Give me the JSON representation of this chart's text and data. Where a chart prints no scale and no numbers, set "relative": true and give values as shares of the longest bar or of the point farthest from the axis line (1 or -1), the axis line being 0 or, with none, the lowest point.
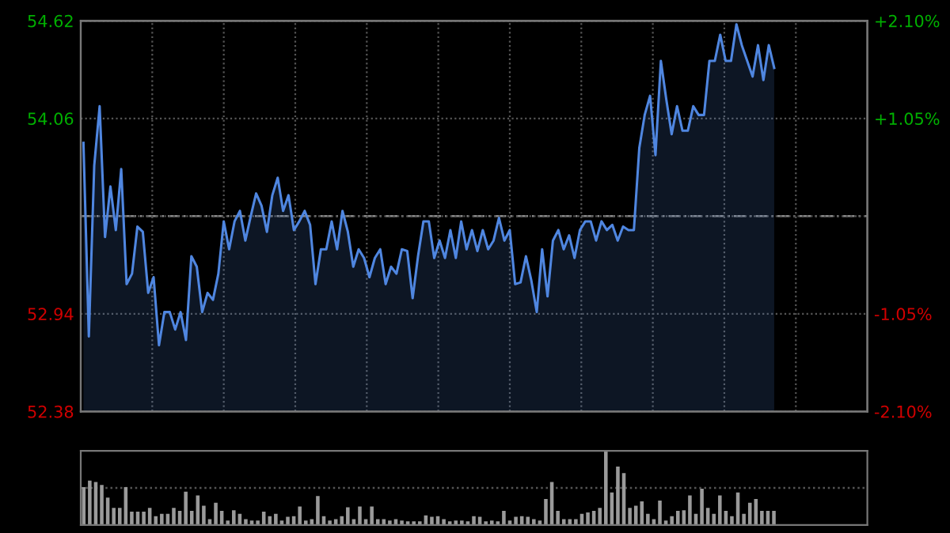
{
  "chart_data": [
    {
      "type": "area",
      "categories": [
        null,
        null,
        null,
        null,
        null,
        null,
        null,
        null,
        null,
        null,
        null,
        null,
        null,
        null,
        null,
        null,
        null,
        null,
        null,
        null,
        null,
        null,
        null,
        null,
        null,
        null,
        null,
        null,
        null,
        null,
        null,
        null,
        null,
        null,
        null,
        null,
        null,
        null,
        null,
        null,
        null,
        null,
        null,
        null,
        null,
        null,
        null,
        null,
        null,
        null,
        null,
        null,
        null,
        null,
        null,
        null,
        null,
        null,
        null,
        null,
        null,
        null,
        null,
        null,
        null,
        null,
        null,
        null,
        null,
        null,
        null,
        null,
        null,
        null,
        null,
        null,
        null,
        null,
        null,
        null,
        null,
        null,
        null,
        null,
        null,
        null,
        null,
        null,
        null,
        null,
        null,
        null,
        null,
        null,
        null,
        null,
        null,
        null,
        null,
        null,
        null,
        null,
        null,
        null,
        null,
        null,
        null,
        null,
        null,
        null,
        null,
        null,
        null,
        null,
        null,
        null,
        null,
        null,
        null,
        null,
        null,
        null,
        null,
        null,
        null,
        null,
        null,
        null,
        null
      ],
      "series": [
        {
          "color": "#4f86e0",
          "values": [
            53.92,
            52.81,
            53.79,
            54.13,
            53.38,
            53.67,
            53.42,
            53.77,
            53.11,
            53.17,
            53.44,
            53.41,
            53.06,
            53.15,
            52.76,
            52.95,
            52.95,
            52.85,
            52.95,
            52.79,
            53.27,
            53.21,
            52.95,
            53.06,
            53.02,
            53.17,
            53.47,
            53.31,
            53.47,
            53.53,
            53.36,
            53.5,
            53.63,
            53.56,
            53.41,
            53.62,
            53.72,
            53.53,
            53.62,
            53.42,
            53.47,
            53.53,
            53.45,
            53.11,
            53.31,
            53.31,
            53.47,
            53.31,
            53.53,
            53.41,
            53.21,
            53.31,
            53.26,
            53.15,
            53.26,
            53.31,
            53.11,
            53.21,
            53.17,
            53.31,
            53.3,
            53.03,
            53.27,
            53.47,
            53.47,
            53.26,
            53.36,
            53.26,
            53.42,
            53.26,
            53.47,
            53.31,
            53.42,
            53.3,
            53.42,
            53.31,
            53.36,
            53.49,
            53.36,
            53.42,
            53.11,
            53.12,
            53.27,
            53.13,
            52.95,
            53.31,
            53.04,
            53.36,
            53.42,
            53.31,
            53.39,
            53.26,
            53.42,
            53.47,
            53.47,
            53.36,
            53.47,
            53.42,
            53.45,
            53.36,
            53.44,
            53.42,
            53.42,
            53.89,
            54.08,
            54.19,
            53.85,
            54.39,
            54.17,
            53.97,
            54.13,
            53.99,
            53.99,
            54.13,
            54.08,
            54.08,
            54.39,
            54.39,
            54.54,
            54.39,
            54.39,
            54.6,
            54.48,
            54.39,
            54.3,
            54.48,
            54.28,
            54.48,
            54.35
          ]
        }
      ],
      "ylim": [
        52.38,
        54.62
      ],
      "yticks": [
        52.38,
        52.94,
        {
          "value": 53.5,
          "label": null
        },
        54.06,
        54.62
      ],
      "y2lim": [
        -2.1,
        2.1
      ],
      "y2ticks": [
        {
          "value": -2.1,
          "label": "-2.10%"
        },
        {
          "value": -1.05,
          "label": "-1.05%"
        },
        {
          "value": 0,
          "label": null
        },
        {
          "value": 1.05,
          "label": "+1.05%"
        },
        {
          "value": 2.1,
          "label": "+2.10%"
        }
      ],
      "ref_lines": [
        {
          "axis": "y",
          "value": 53.5,
          "color": "#8a8a8a",
          "line_style": "dashed"
        }
      ],
      "grid": true
    },
    {
      "type": "bar",
      "relative": true,
      "color": "#9a9a9a",
      "ref_lines": [
        {
          "axis": "y",
          "value": 0.5,
          "color": "#555555",
          "line_style": "dotted"
        }
      ],
      "categories": [
        null,
        null,
        null,
        null,
        null,
        null,
        null,
        null,
        null,
        null,
        null,
        null,
        null,
        null,
        null,
        null,
        null,
        null,
        null,
        null,
        null,
        null,
        null,
        null,
        null,
        null,
        null,
        null,
        null,
        null,
        null,
        null,
        null,
        null,
        null,
        null,
        null,
        null,
        null,
        null,
        null,
        null,
        null,
        null,
        null,
        null,
        null,
        null,
        null,
        null,
        null,
        null,
        null,
        null,
        null,
        null,
        null,
        null,
        null,
        null,
        null,
        null,
        null,
        null,
        null,
        null,
        null,
        null,
        null,
        null,
        null,
        null,
        null,
        null,
        null,
        null,
        null,
        null,
        null,
        null,
        null,
        null,
        null,
        null,
        null,
        null,
        null,
        null,
        null,
        null,
        null,
        null,
        null,
        null,
        null,
        null,
        null,
        null,
        null,
        null,
        null,
        null,
        null,
        null,
        null,
        null,
        null,
        null,
        null,
        null,
        null,
        null,
        null,
        null,
        null,
        null
      ],
      "values": [
        0.51,
        0.6,
        0.58,
        0.54,
        0.37,
        0.23,
        0.23,
        0.51,
        0.18,
        0.18,
        0.18,
        0.23,
        0.12,
        0.15,
        0.15,
        0.23,
        0.19,
        0.45,
        0.19,
        0.4,
        0.26,
        0.08,
        0.3,
        0.19,
        0.06,
        0.2,
        0.15,
        0.08,
        0.06,
        0.06,
        0.18,
        0.12,
        0.15,
        0.06,
        0.11,
        0.12,
        0.25,
        0.06,
        0.08,
        0.39,
        0.12,
        0.06,
        0.08,
        0.12,
        0.24,
        0.08,
        0.25,
        0.08,
        0.25,
        0.08,
        0.08,
        0.06,
        0.08,
        0.06,
        0.05,
        0.05,
        0.05,
        0.13,
        0.11,
        0.12,
        0.08,
        0.05,
        0.06,
        0.06,
        0.05,
        0.12,
        0.11,
        0.05,
        0.06,
        0.05,
        0.19,
        0.06,
        0.11,
        0.12,
        0.11,
        0.08,
        0.06,
        0.35,
        0.58,
        0.19,
        0.08,
        0.08,
        0.08,
        0.15,
        0.17,
        0.19,
        0.23,
        1,
        0.44,
        0.79,
        0.7,
        0.23,
        0.26,
        0.32,
        0.15,
        0.08,
        0.33,
        0.06,
        0.12,
        0.19,
        0.2,
        0.4,
        0.15,
        0.49,
        0.23,
        0.15,
        0.4,
        0.19,
        0.12,
        0.44,
        0.15,
        0.3,
        0.35,
        0.19,
        0.19,
        0.19
      ]
    }
  ]
}
